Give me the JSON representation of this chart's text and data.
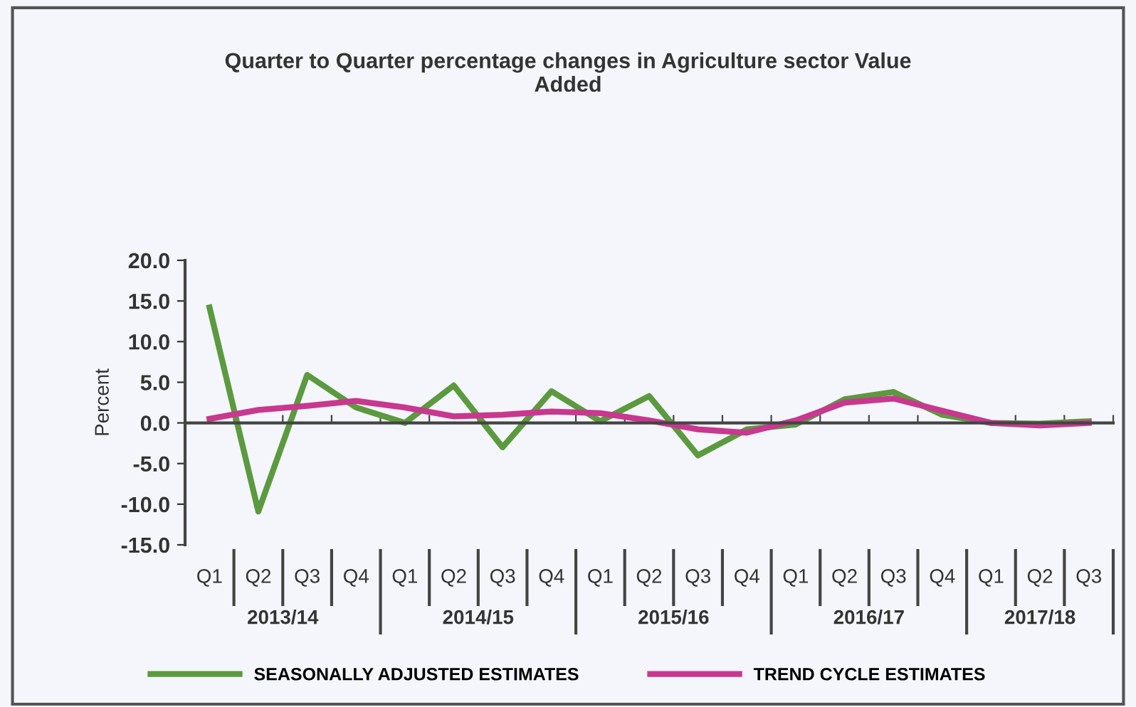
{
  "chart_data": {
    "type": "line",
    "title": "Quarter to Quarter percentage changes in Agriculture sector Value\nAdded",
    "ylabel": "Percent",
    "categories": [
      "Q1",
      "Q2",
      "Q3",
      "Q4",
      "Q1",
      "Q2",
      "Q3",
      "Q4",
      "Q1",
      "Q2",
      "Q3",
      "Q4",
      "Q1",
      "Q2",
      "Q3",
      "Q4",
      "Q1",
      "Q2",
      "Q3"
    ],
    "annotations": [
      "2013/14",
      "2014/15",
      "2015/16",
      "2016/17",
      "2017/18"
    ],
    "series": [
      {
        "name": "SEASONALLY ADJUSTED ESTIMATES",
        "color": "#5b9a3e",
        "values": [
          14.2,
          -10.9,
          5.9,
          1.9,
          0.0,
          4.6,
          -3.0,
          3.9,
          0.2,
          3.3,
          -4.0,
          -0.8,
          -0.2,
          2.9,
          3.8,
          1.0,
          0.0,
          -0.1,
          0.2
        ]
      },
      {
        "name": "TREND CYCLE ESTIMATES",
        "color": "#c8388f",
        "values": [
          0.5,
          1.6,
          2.1,
          2.7,
          1.9,
          0.8,
          1.0,
          1.4,
          1.2,
          0.3,
          -0.8,
          -1.2,
          0.3,
          2.5,
          3.0,
          1.5,
          0.0,
          -0.3,
          0.0
        ]
      }
    ],
    "ylim": [
      -15,
      20
    ],
    "yticks": [
      {
        "value": -15,
        "label": "-15.0"
      },
      {
        "value": -10,
        "label": "-10.0"
      },
      {
        "value": -5,
        "label": "-5.0"
      },
      {
        "value": 0,
        "label": "0.0"
      },
      {
        "value": 5,
        "label": "5.0"
      },
      {
        "value": 10,
        "label": "10.0"
      },
      {
        "value": 15,
        "label": "15.0"
      },
      {
        "value": 20,
        "label": "20.0"
      }
    ],
    "legend": "bottom",
    "marker": "none",
    "line_style": "solid"
  }
}
